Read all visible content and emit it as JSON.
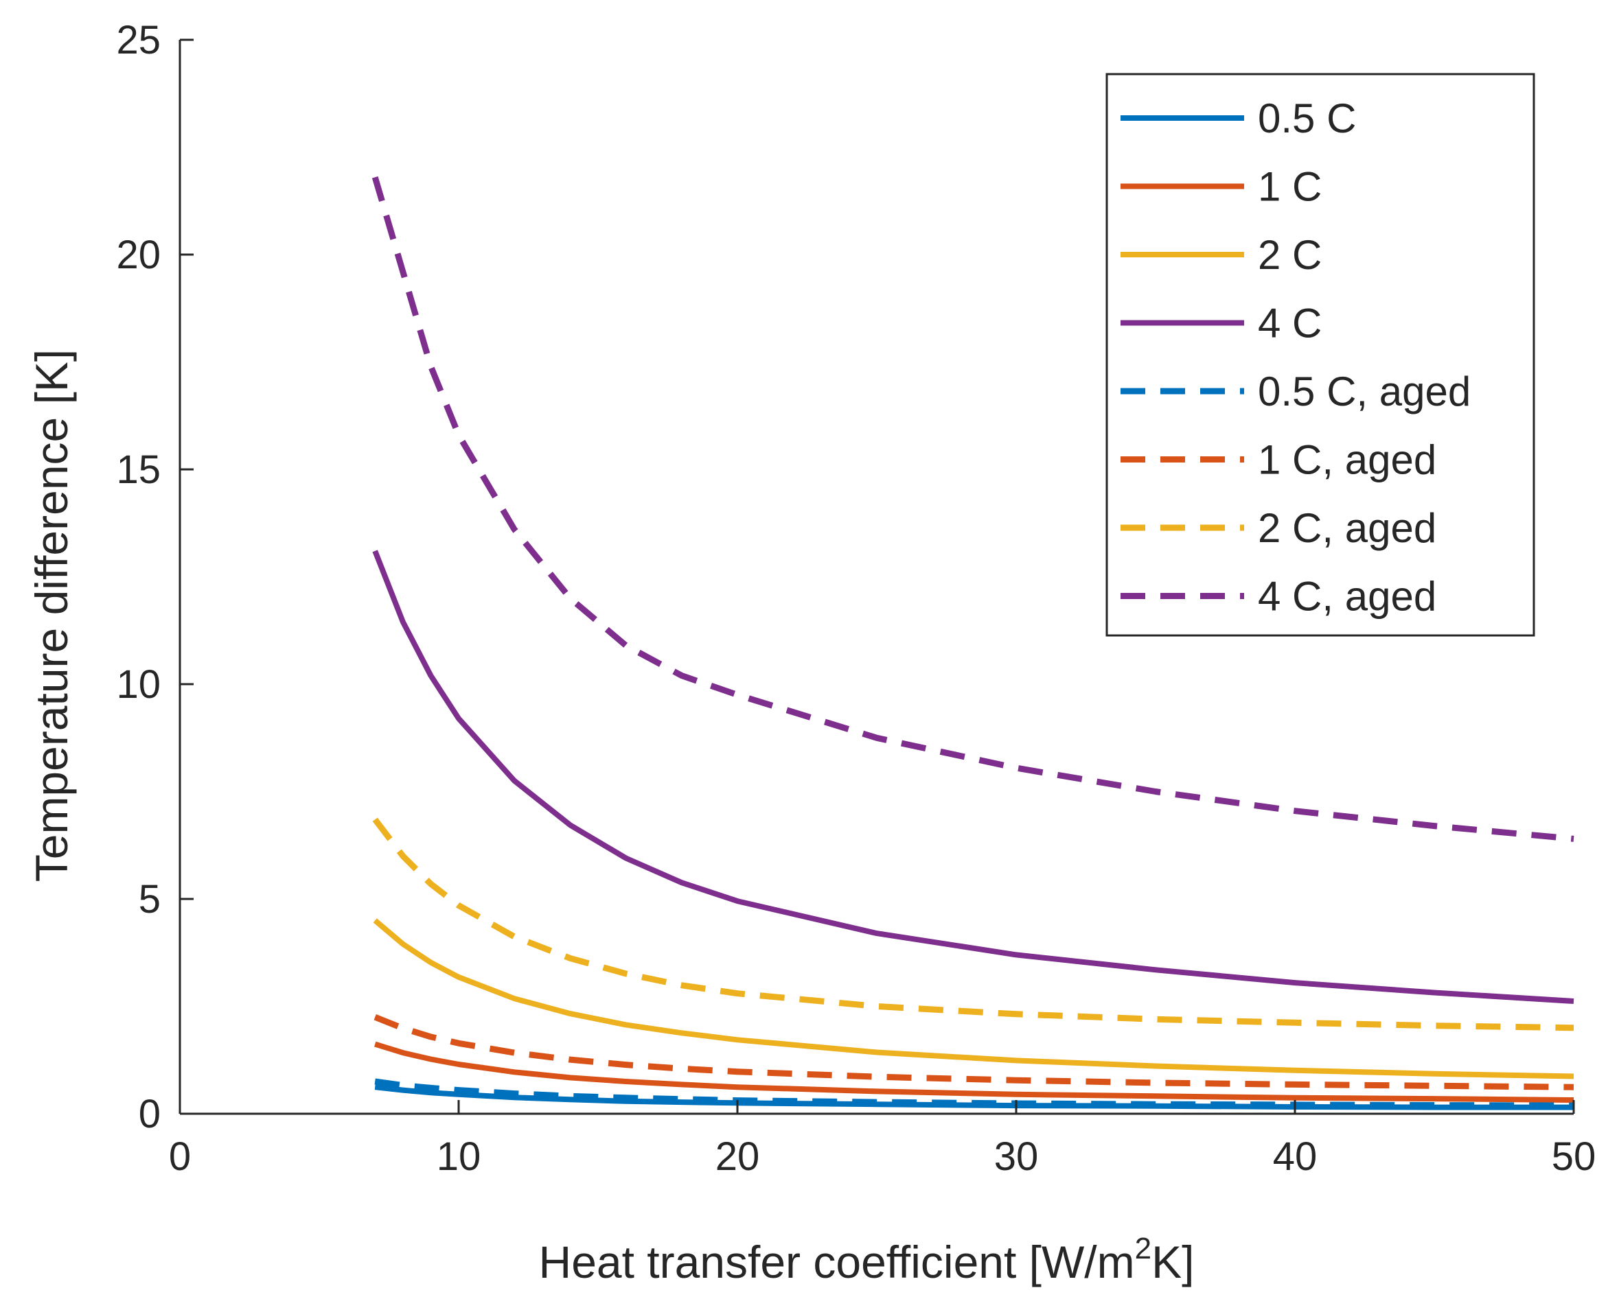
{
  "chart_data": {
    "type": "line",
    "title": "",
    "xlabel": {
      "main": "Heat transfer coefficient [W/m",
      "sup": "2",
      "tail": "K]"
    },
    "ylabel": "Temperature difference [K]",
    "xlim": [
      0,
      50
    ],
    "ylim": [
      0,
      25
    ],
    "xticks": [
      "0",
      "10",
      "20",
      "30",
      "40",
      "50"
    ],
    "yticks": [
      "0",
      "5",
      "10",
      "15",
      "20",
      "25"
    ],
    "grid": false,
    "legend_position": "top-right",
    "x": [
      7,
      8,
      9,
      10,
      12,
      14,
      16,
      18,
      20,
      25,
      30,
      35,
      40,
      45,
      50
    ],
    "series": [
      {
        "name": "0.5 C",
        "color": "#0072BD",
        "dash": "solid",
        "values": [
          0.62,
          0.55,
          0.49,
          0.45,
          0.38,
          0.33,
          0.29,
          0.27,
          0.25,
          0.22,
          0.19,
          0.18,
          0.16,
          0.15,
          0.15
        ]
      },
      {
        "name": "1 C",
        "color": "#D95319",
        "dash": "solid",
        "values": [
          1.62,
          1.42,
          1.27,
          1.15,
          0.97,
          0.84,
          0.75,
          0.68,
          0.62,
          0.52,
          0.45,
          0.41,
          0.37,
          0.35,
          0.32
        ]
      },
      {
        "name": "2 C",
        "color": "#EDB120",
        "dash": "solid",
        "values": [
          4.5,
          3.95,
          3.52,
          3.18,
          2.68,
          2.33,
          2.07,
          1.88,
          1.72,
          1.43,
          1.24,
          1.11,
          1.01,
          0.93,
          0.87
        ]
      },
      {
        "name": "4 C",
        "color": "#7E2F8E",
        "dash": "solid",
        "values": [
          13.1,
          11.45,
          10.2,
          9.2,
          7.75,
          6.72,
          5.95,
          5.38,
          4.95,
          4.2,
          3.7,
          3.35,
          3.05,
          2.82,
          2.62
        ]
      },
      {
        "name": "0.5 C, aged",
        "color": "#0072BD",
        "dash": "dashed",
        "values": [
          0.75,
          0.66,
          0.6,
          0.55,
          0.47,
          0.41,
          0.37,
          0.34,
          0.31,
          0.27,
          0.24,
          0.22,
          0.21,
          0.2,
          0.19
        ]
      },
      {
        "name": "1 C, aged",
        "color": "#D95319",
        "dash": "dashed",
        "values": [
          2.25,
          1.99,
          1.79,
          1.64,
          1.42,
          1.26,
          1.14,
          1.05,
          0.98,
          0.86,
          0.78,
          0.72,
          0.68,
          0.65,
          0.62
        ]
      },
      {
        "name": "2 C, aged",
        "color": "#EDB120",
        "dash": "dashed",
        "values": [
          6.85,
          6.0,
          5.35,
          4.85,
          4.12,
          3.62,
          3.26,
          2.99,
          2.8,
          2.5,
          2.32,
          2.2,
          2.12,
          2.05,
          2.0
        ]
      },
      {
        "name": "4 C, aged",
        "color": "#7E2F8E",
        "dash": "dashed",
        "values": [
          21.8,
          19.6,
          17.4,
          15.8,
          13.6,
          12.0,
          10.9,
          10.2,
          9.75,
          8.75,
          8.05,
          7.5,
          7.05,
          6.7,
          6.4
        ]
      }
    ]
  }
}
